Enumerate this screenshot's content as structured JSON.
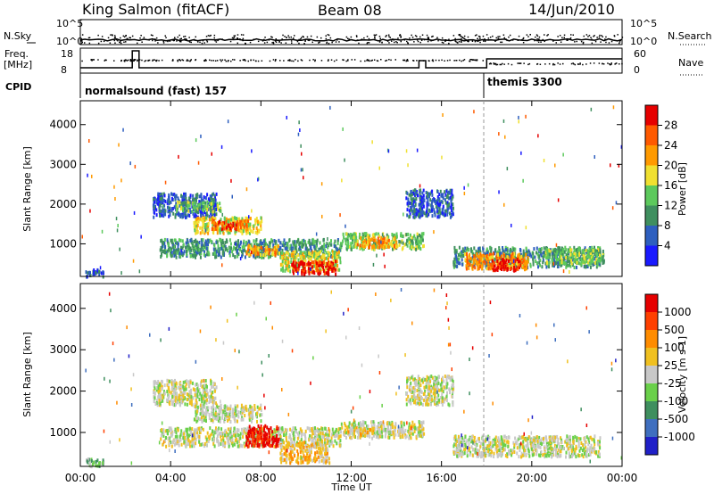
{
  "header": {
    "site": "King Salmon (fitACF)",
    "beam": "Beam 08",
    "date": "14/Jun/2010"
  },
  "top_panel": {
    "left_label": "N.Sky",
    "right_label": "N.Search",
    "left_ticks": [
      "10^5",
      "10^0"
    ],
    "right_ticks": [
      "10^5",
      "10^0"
    ]
  },
  "freq_panel": {
    "left_label_1": "Freq.",
    "left_label_2": "[MHz]",
    "right_label": "Nave",
    "left_ticks": [
      "18",
      "8"
    ],
    "right_ticks": [
      "60",
      "0"
    ]
  },
  "cpid": {
    "label": "CPID",
    "modes": [
      {
        "name": "normalsound (fast) 157",
        "start_hour": 0
      },
      {
        "name": "themis 3300",
        "start_hour": 18
      }
    ]
  },
  "x_axis": {
    "title": "Time UT",
    "ticks": [
      "00:00",
      "04:00",
      "08:00",
      "12:00",
      "16:00",
      "20:00",
      "00:00"
    ]
  },
  "chart_data": [
    {
      "type": "heatmap",
      "title": "",
      "quantity": "Power",
      "xlabel": "Time UT",
      "ylabel": "Slant Range [km]",
      "xlim_hours": [
        0,
        24
      ],
      "ylim_km": [
        180,
        4600
      ],
      "y_ticks": [
        "1000",
        "2000",
        "3000",
        "4000"
      ],
      "colorbar": {
        "label": "Power [dB]",
        "ticks": [
          "28",
          "24",
          "20",
          "16",
          "12",
          "8",
          "4"
        ],
        "colors": [
          "#1a1aff",
          "#2e5fbf",
          "#3f8f5f",
          "#5cc95c",
          "#f0e030",
          "#ff9a00",
          "#ff5a00",
          "#e60000"
        ]
      },
      "echo_regions": [
        {
          "t_start": 0.2,
          "t_end": 1.0,
          "range_km": [
            200,
            400
          ],
          "level": 1
        },
        {
          "t_start": 3.2,
          "t_end": 6.0,
          "range_km": [
            1700,
            2300
          ],
          "level": 1
        },
        {
          "t_start": 4.2,
          "t_end": 6.2,
          "range_km": [
            1850,
            2100
          ],
          "level": 3
        },
        {
          "t_start": 5.0,
          "t_end": 8.0,
          "range_km": [
            1300,
            1700
          ],
          "level": 4
        },
        {
          "t_start": 5.8,
          "t_end": 7.4,
          "range_km": [
            1400,
            1650
          ],
          "level": 6
        },
        {
          "t_start": 3.5,
          "t_end": 11.5,
          "range_km": [
            700,
            1150
          ],
          "level": 2
        },
        {
          "t_start": 7.3,
          "t_end": 8.8,
          "range_km": [
            750,
            1000
          ],
          "level": 5
        },
        {
          "t_start": 8.8,
          "t_end": 11.5,
          "range_km": [
            350,
            850
          ],
          "level": 4
        },
        {
          "t_start": 9.3,
          "t_end": 11.3,
          "range_km": [
            280,
            600
          ],
          "level": 7
        },
        {
          "t_start": 11.5,
          "t_end": 15.2,
          "range_km": [
            900,
            1300
          ],
          "level": 3
        },
        {
          "t_start": 12.2,
          "t_end": 14.0,
          "range_km": [
            950,
            1200
          ],
          "level": 5
        },
        {
          "t_start": 14.4,
          "t_end": 16.5,
          "range_km": [
            1700,
            2400
          ],
          "level": 1
        },
        {
          "t_start": 16.5,
          "t_end": 23.0,
          "range_km": [
            450,
            950
          ],
          "level": 2
        },
        {
          "t_start": 17.0,
          "t_end": 19.8,
          "range_km": [
            400,
            800
          ],
          "level": 5
        },
        {
          "t_start": 18.2,
          "t_end": 19.5,
          "range_km": [
            350,
            650
          ],
          "level": 7
        },
        {
          "t_start": 20.5,
          "t_end": 23.2,
          "range_km": [
            550,
            900
          ],
          "level": 3
        }
      ]
    },
    {
      "type": "heatmap",
      "title": "",
      "quantity": "Velocity",
      "xlabel": "Time UT",
      "ylabel": "Slant Range [km]",
      "xlim_hours": [
        0,
        24
      ],
      "ylim_km": [
        180,
        4600
      ],
      "y_ticks": [
        "1000",
        "2000",
        "3000",
        "4000"
      ],
      "colorbar": {
        "label": "Velocity [m s-1]",
        "ticks": [
          "1000",
          "500",
          "100",
          "25",
          "-25",
          "-100",
          "-500",
          "-1000"
        ],
        "colors": [
          "#2020c8",
          "#3f6fbf",
          "#3f8f5f",
          "#6ad04a",
          "#c8c8c8",
          "#f0c020",
          "#ff8c00",
          "#ff4000",
          "#e60000"
        ]
      },
      "echo_regions": [
        {
          "t_start": 0.2,
          "t_end": 1.0,
          "range_km": [
            200,
            400
          ],
          "level": 3
        },
        {
          "t_start": 3.2,
          "t_end": 6.0,
          "range_km": [
            1700,
            2300
          ],
          "level": 4
        },
        {
          "t_start": 5.0,
          "t_end": 8.0,
          "range_km": [
            1300,
            1700
          ],
          "level": 4
        },
        {
          "t_start": 3.5,
          "t_end": 11.5,
          "range_km": [
            700,
            1150
          ],
          "level": 4
        },
        {
          "t_start": 7.3,
          "t_end": 8.8,
          "range_km": [
            700,
            1200
          ],
          "level": 8
        },
        {
          "t_start": 8.8,
          "t_end": 11.0,
          "range_km": [
            300,
            800
          ],
          "level": 5
        },
        {
          "t_start": 11.5,
          "t_end": 15.2,
          "range_km": [
            900,
            1300
          ],
          "level": 4
        },
        {
          "t_start": 11.8,
          "t_end": 13.0,
          "range_km": [
            950,
            1150
          ],
          "level": 5
        },
        {
          "t_start": 14.4,
          "t_end": 16.5,
          "range_km": [
            1700,
            2400
          ],
          "level": 4
        },
        {
          "t_start": 16.5,
          "t_end": 23.0,
          "range_km": [
            450,
            950
          ],
          "level": 4
        }
      ]
    }
  ]
}
